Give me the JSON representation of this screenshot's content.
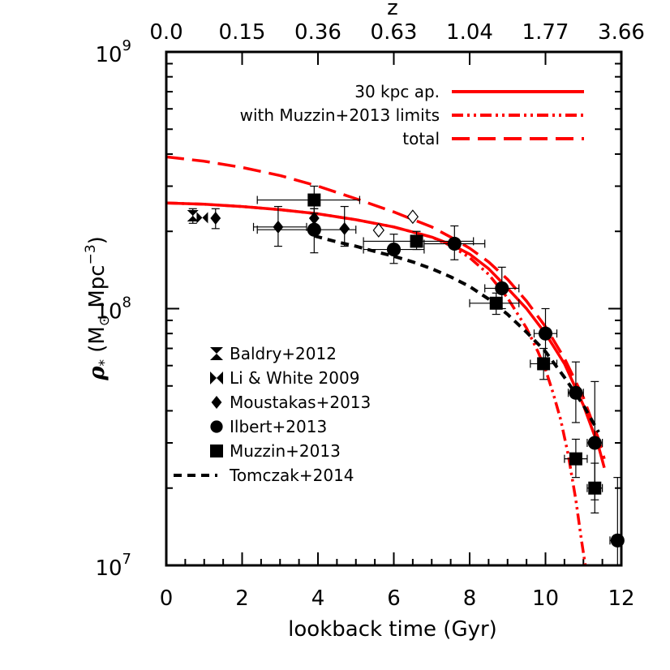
{
  "chart_data": {
    "type": "scatter",
    "xlabel": "lookback time (Gyr)",
    "ylabel": "ρ* (M⊙ Mpc⁻³)",
    "top_axis_label": "z",
    "xlim": [
      0,
      12
    ],
    "ylim": [
      10000000,
      1000000000
    ],
    "y_scale": "log",
    "x_ticks": [
      0,
      2,
      4,
      6,
      8,
      10,
      12
    ],
    "x_tick_labels": [
      "0",
      "2",
      "4",
      "6",
      "8",
      "10",
      "12"
    ],
    "y_ticks": [
      10000000,
      100000000,
      1000000000
    ],
    "y_tick_labels": [
      {
        "base": "10",
        "exp": "7"
      },
      {
        "base": "10",
        "exp": "8"
      },
      {
        "base": "10",
        "exp": "9"
      }
    ],
    "top_tick_labels": [
      "0.0",
      "0.15",
      "0.36",
      "0.63",
      "1.04",
      "1.77",
      "3.66"
    ],
    "legend_top": {
      "placement": "top-right",
      "entries": [
        {
          "label": "30 kpc ap.",
          "style": "solid",
          "color": "#ff0000"
        },
        {
          "label": "with Muzzin+2013 limits",
          "style": "dashdot",
          "color": "#ff0000"
        },
        {
          "label": "total",
          "style": "dashed",
          "color": "#ff0000"
        }
      ]
    },
    "legend_bottom": {
      "placement": "bottom-left",
      "entries": [
        {
          "label": "Baldry+2012",
          "marker": "hourglass"
        },
        {
          "label": "Li & White 2009",
          "marker": "bowtie"
        },
        {
          "label": "Moustakas+2013",
          "marker": "diamond"
        },
        {
          "label": "Ilbert+2013",
          "marker": "circle"
        },
        {
          "label": "Muzzin+2013",
          "marker": "square"
        },
        {
          "label": "Tomczak+2014",
          "marker": "line-dashed"
        }
      ]
    },
    "lines": [
      {
        "style": "solid",
        "color": "#ff0000",
        "x": [
          0,
          1,
          2,
          3,
          4,
          5,
          6,
          7,
          7.5,
          8,
          8.5,
          9,
          9.5,
          10,
          10.5,
          11,
          11.4,
          11.55
        ],
        "y": [
          258000000,
          255000000,
          250000000,
          243000000,
          234000000,
          222000000,
          208000000,
          190000000,
          178000000,
          163000000,
          143000000,
          120000000,
          100000000,
          80000000,
          61000000,
          42000000,
          29000000,
          24000000
        ]
      },
      {
        "style": "dashed",
        "color": "#ff0000",
        "x": [
          0,
          1,
          2,
          3,
          4,
          5,
          6,
          7,
          7.5,
          8,
          8.5,
          9,
          9.5,
          10,
          10.5,
          11,
          11.4,
          11.55
        ],
        "y": [
          390000000,
          375000000,
          355000000,
          330000000,
          300000000,
          268000000,
          238000000,
          208000000,
          190000000,
          172000000,
          152000000,
          130000000,
          107000000,
          85000000,
          64000000,
          45000000,
          31000000,
          26000000
        ]
      },
      {
        "style": "dashdot",
        "color": "#ff0000",
        "x": [
          0,
          1,
          2,
          3,
          4,
          5,
          6,
          7,
          7.5,
          8,
          8.5,
          9,
          9.5,
          9.8,
          10,
          10.2,
          10.4,
          10.6,
          10.8,
          10.95,
          11.05
        ],
        "y": [
          258000000,
          255000000,
          250000000,
          243000000,
          234000000,
          222000000,
          208000000,
          190000000,
          176000000,
          158000000,
          136000000,
          110000000,
          84000000,
          68000000,
          58000000,
          47000000,
          37000000,
          27000000,
          18000000,
          12500000,
          10000000
        ]
      },
      {
        "style": "dashed",
        "color": "#000000",
        "x": [
          3.9,
          4.5,
          5.0,
          5.5,
          6.0,
          6.5,
          7.0,
          7.5,
          8.0,
          8.5,
          9.0,
          9.5,
          10.0,
          10.5,
          11.0,
          11.4
        ],
        "y": [
          192000000,
          182000000,
          175000000,
          167000000,
          160000000,
          152000000,
          143000000,
          133000000,
          122000000,
          109000000,
          95000000,
          81000000,
          68000000,
          54000000,
          42000000,
          33000000
        ]
      }
    ],
    "series": [
      {
        "name": "Baldry+2012",
        "marker": "hourglass",
        "points": [
          {
            "x": 0.7,
            "y": 230000000,
            "yerr": [
              245000000,
              215000000
            ]
          }
        ]
      },
      {
        "name": "Li & White 2009",
        "marker": "bowtie",
        "points": [
          {
            "x": 0.95,
            "y": 226000000
          }
        ]
      },
      {
        "name": "Moustakas+2013",
        "marker": "diamond",
        "points": [
          {
            "x": 1.3,
            "y": 225000000,
            "yerr": [
              245000000,
              205000000
            ]
          },
          {
            "x": 2.95,
            "y": 208000000,
            "xerr": [
              2.3,
              3.7
            ],
            "yerr": [
              250000000,
              175000000
            ]
          },
          {
            "x": 3.9,
            "y": 225000000,
            "yerr": [
              245000000,
              205000000
            ]
          },
          {
            "x": 4.7,
            "y": 205000000,
            "yerr": [
              250000000,
              175000000
            ]
          }
        ]
      },
      {
        "name": "Moustakas+2013 (open)",
        "marker": "diamond-open",
        "points": [
          {
            "x": 5.6,
            "y": 202000000
          },
          {
            "x": 6.5,
            "y": 228000000
          }
        ]
      },
      {
        "name": "Ilbert+2013",
        "marker": "circle",
        "points": [
          {
            "x": 3.9,
            "y": 203000000,
            "xerr": [
              2.4,
              5.0
            ],
            "yerr": [
              245000000,
              165000000
            ]
          },
          {
            "x": 6.0,
            "y": 170000000,
            "xerr": [
              5.2,
              6.8
            ],
            "yerr": [
              195000000,
              150000000
            ]
          },
          {
            "x": 7.6,
            "y": 179000000,
            "xerr": [
              6.8,
              8.4
            ],
            "yerr": [
              210000000,
              155000000
            ]
          },
          {
            "x": 8.85,
            "y": 120000000,
            "xerr": [
              8.4,
              9.3
            ],
            "yerr": [
              145000000,
              100000000
            ]
          },
          {
            "x": 10.0,
            "y": 80000000,
            "xerr": [
              9.7,
              10.3
            ],
            "yerr": [
              100000000,
              63000000
            ]
          },
          {
            "x": 10.8,
            "y": 47000000,
            "xerr": [
              10.6,
              11.0
            ],
            "yerr": [
              62000000,
              36000000
            ]
          },
          {
            "x": 11.3,
            "y": 30000000,
            "xerr": [
              11.1,
              11.5
            ],
            "yerr": [
              52000000,
              18000000
            ]
          },
          {
            "x": 11.9,
            "y": 12500000,
            "xerr": [
              11.7,
              12.0
            ],
            "yerr": [
              22000000,
              10000000
            ]
          }
        ]
      },
      {
        "name": "Muzzin+2013",
        "marker": "square",
        "points": [
          {
            "x": 3.9,
            "y": 265000000,
            "xerr": [
              2.4,
              5.1
            ],
            "yerr": [
              300000000,
              235000000
            ]
          },
          {
            "x": 6.6,
            "y": 183000000,
            "xerr": [
              5.2,
              8.1
            ],
            "yerr": [
              200000000,
              170000000
            ]
          },
          {
            "x": 8.7,
            "y": 105000000,
            "xerr": [
              8.0,
              9.3
            ],
            "yerr": [
              115000000,
              95000000
            ]
          },
          {
            "x": 9.95,
            "y": 61000000,
            "xerr": [
              9.6,
              10.3
            ],
            "yerr": [
              70000000,
              53000000
            ]
          },
          {
            "x": 10.8,
            "y": 26000000,
            "xerr": [
              10.5,
              11.1
            ],
            "yerr": [
              31000000,
              22000000
            ]
          },
          {
            "x": 11.3,
            "y": 20000000,
            "xerr": [
              11.1,
              11.5
            ],
            "yerr": [
              25000000,
              16000000
            ]
          }
        ]
      }
    ]
  }
}
